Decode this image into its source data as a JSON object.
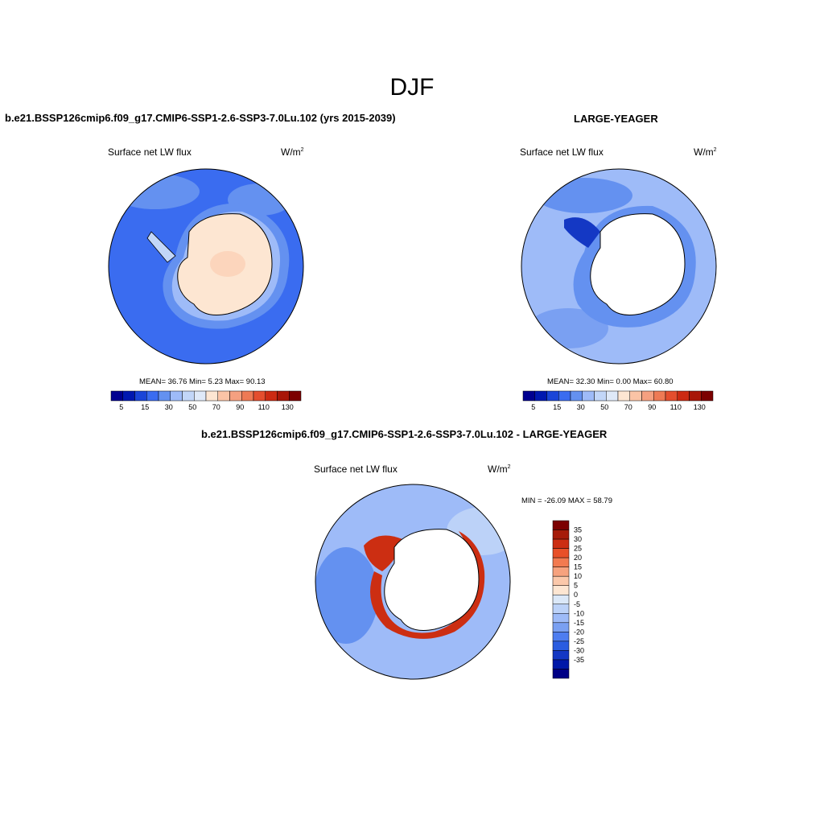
{
  "main_title": "DJF",
  "panels": [
    {
      "title": "b.e21.BSSP126cmip6.f09_g17.CMIP6-SSP1-2.6-SSP3-7.0Lu.102 (yrs 2015-2039)",
      "variable": "Surface net LW flux",
      "units_base": "W/m",
      "units_exp": "2",
      "stats": "MEAN=  36.76  Min=   5.23  Max=  90.13"
    },
    {
      "title": "LARGE-YEAGER",
      "variable": "Surface net LW flux",
      "units_base": "W/m",
      "units_exp": "2",
      "stats": "MEAN=  32.30  Min=   0.00  Max=  60.80"
    },
    {
      "title": "b.e21.BSSP126cmip6.f09_g17.CMIP6-SSP1-2.6-SSP3-7.0Lu.102 - LARGE-YEAGER",
      "variable": "Surface net LW flux",
      "units_base": "W/m",
      "units_exp": "2",
      "stats": "MIN = -26.09 MAX =  58.79"
    }
  ],
  "colorbar_top": {
    "colors": [
      "#000090",
      "#0018b0",
      "#1a45d8",
      "#3a6cf0",
      "#6491f0",
      "#9ebbf8",
      "#c2d6f8",
      "#dfe9f8",
      "#fde6d2",
      "#fbc4a6",
      "#f5a080",
      "#ee7a55",
      "#e44e2e",
      "#cc2a12",
      "#a81608",
      "#7c0000"
    ],
    "labels": [
      "5",
      "15",
      "30",
      "50",
      "70",
      "90",
      "110",
      "130"
    ]
  },
  "colorbar_diff": {
    "colors": [
      "#7c0000",
      "#a61c0a",
      "#cc2e12",
      "#e85028",
      "#f27a50",
      "#f6a27e",
      "#fbc8aa",
      "#fde6d2",
      "#dbe8f8",
      "#bcd2f8",
      "#9ebbf8",
      "#7aa0f2",
      "#4e7df0",
      "#2a5ce0",
      "#1438c4",
      "#0018a8",
      "#000085"
    ],
    "labels": [
      "35",
      "30",
      "25",
      "20",
      "15",
      "10",
      "5",
      "0",
      "-5",
      "-10",
      "-15",
      "-20",
      "-25",
      "-30",
      "-35"
    ]
  },
  "map_colors": {
    "ocean_p1": "#3a6cf0",
    "ocean_p2": "#9ebbf8",
    "ocean_diff": "#9ebbf8",
    "land_p1": "#fde6d2",
    "land_white": "#ffffff",
    "rim_p1": "#9ebbf8",
    "rim_p2_deep": "#1438c4",
    "rim_diff_red": "#cc2e12",
    "rim_diff_light": "#f27a50"
  }
}
